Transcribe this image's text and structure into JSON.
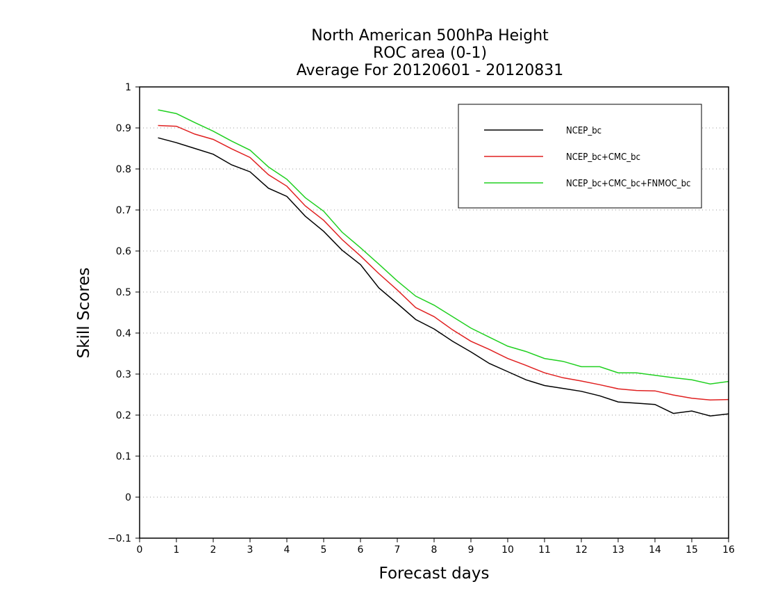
{
  "chart_data": {
    "type": "line",
    "title": [
      "North American 500hPa Height",
      "ROC area (0-1)",
      "Average For 20120601 - 20120831"
    ],
    "xlabel": "Forecast days",
    "ylabel": "Skill Scores",
    "xlim": [
      0,
      16
    ],
    "ylim": [
      -0.1,
      1
    ],
    "xticks": [
      0,
      1,
      2,
      3,
      4,
      5,
      6,
      7,
      8,
      9,
      10,
      11,
      12,
      13,
      14,
      15,
      16
    ],
    "xtick_labels": [
      "0",
      "1",
      "2",
      "3",
      "4",
      "5",
      "6",
      "7",
      "8",
      "9",
      "10",
      "11",
      "12",
      "13",
      "14",
      "15",
      "16"
    ],
    "yticks": [
      -0.1,
      0,
      0.1,
      0.2,
      0.3,
      0.4,
      0.5,
      0.6,
      0.7,
      0.8,
      0.9,
      1
    ],
    "ytick_labels": [
      "−0.1",
      "0",
      "0.1",
      "0.2",
      "0.3",
      "0.4",
      "0.5",
      "0.6",
      "0.7",
      "0.8",
      "0.9",
      "1"
    ],
    "grid": true,
    "legend_position": "top-right",
    "x": [
      0.5,
      1,
      1.5,
      2,
      2.5,
      3,
      3.5,
      4,
      4.5,
      5,
      5.5,
      6,
      6.5,
      7,
      7.5,
      8,
      8.5,
      9,
      9.5,
      10,
      10.5,
      11,
      11.5,
      12,
      12.5,
      13,
      13.5,
      14,
      14.5,
      15,
      15.5,
      16
    ],
    "series": [
      {
        "name": "NCEP_bc",
        "color": "#000000",
        "values": [
          0.876,
          0.864,
          0.85,
          0.836,
          0.81,
          0.793,
          0.753,
          0.733,
          0.685,
          0.648,
          0.602,
          0.567,
          0.51,
          0.472,
          0.433,
          0.41,
          0.38,
          0.354,
          0.326,
          0.306,
          0.286,
          0.272,
          0.265,
          0.258,
          0.247,
          0.232,
          0.229,
          0.226,
          0.204,
          0.21,
          0.198,
          0.203
        ]
      },
      {
        "name": "NCEP_bc+CMC_bc",
        "color": "#e02020",
        "values": [
          0.906,
          0.904,
          0.885,
          0.872,
          0.849,
          0.828,
          0.786,
          0.758,
          0.71,
          0.675,
          0.628,
          0.588,
          0.545,
          0.505,
          0.462,
          0.44,
          0.408,
          0.38,
          0.36,
          0.338,
          0.321,
          0.303,
          0.291,
          0.283,
          0.274,
          0.264,
          0.26,
          0.259,
          0.249,
          0.241,
          0.237,
          0.238
        ]
      },
      {
        "name": "NCEP_bc+CMC_bc+FNMOC_bc",
        "color": "#20d020",
        "values": [
          0.944,
          0.935,
          0.913,
          0.892,
          0.868,
          0.846,
          0.805,
          0.775,
          0.73,
          0.697,
          0.646,
          0.608,
          0.568,
          0.527,
          0.49,
          0.468,
          0.44,
          0.412,
          0.39,
          0.368,
          0.355,
          0.338,
          0.331,
          0.318,
          0.318,
          0.303,
          0.303,
          0.297,
          0.291,
          0.286,
          0.276,
          0.282
        ]
      }
    ]
  }
}
